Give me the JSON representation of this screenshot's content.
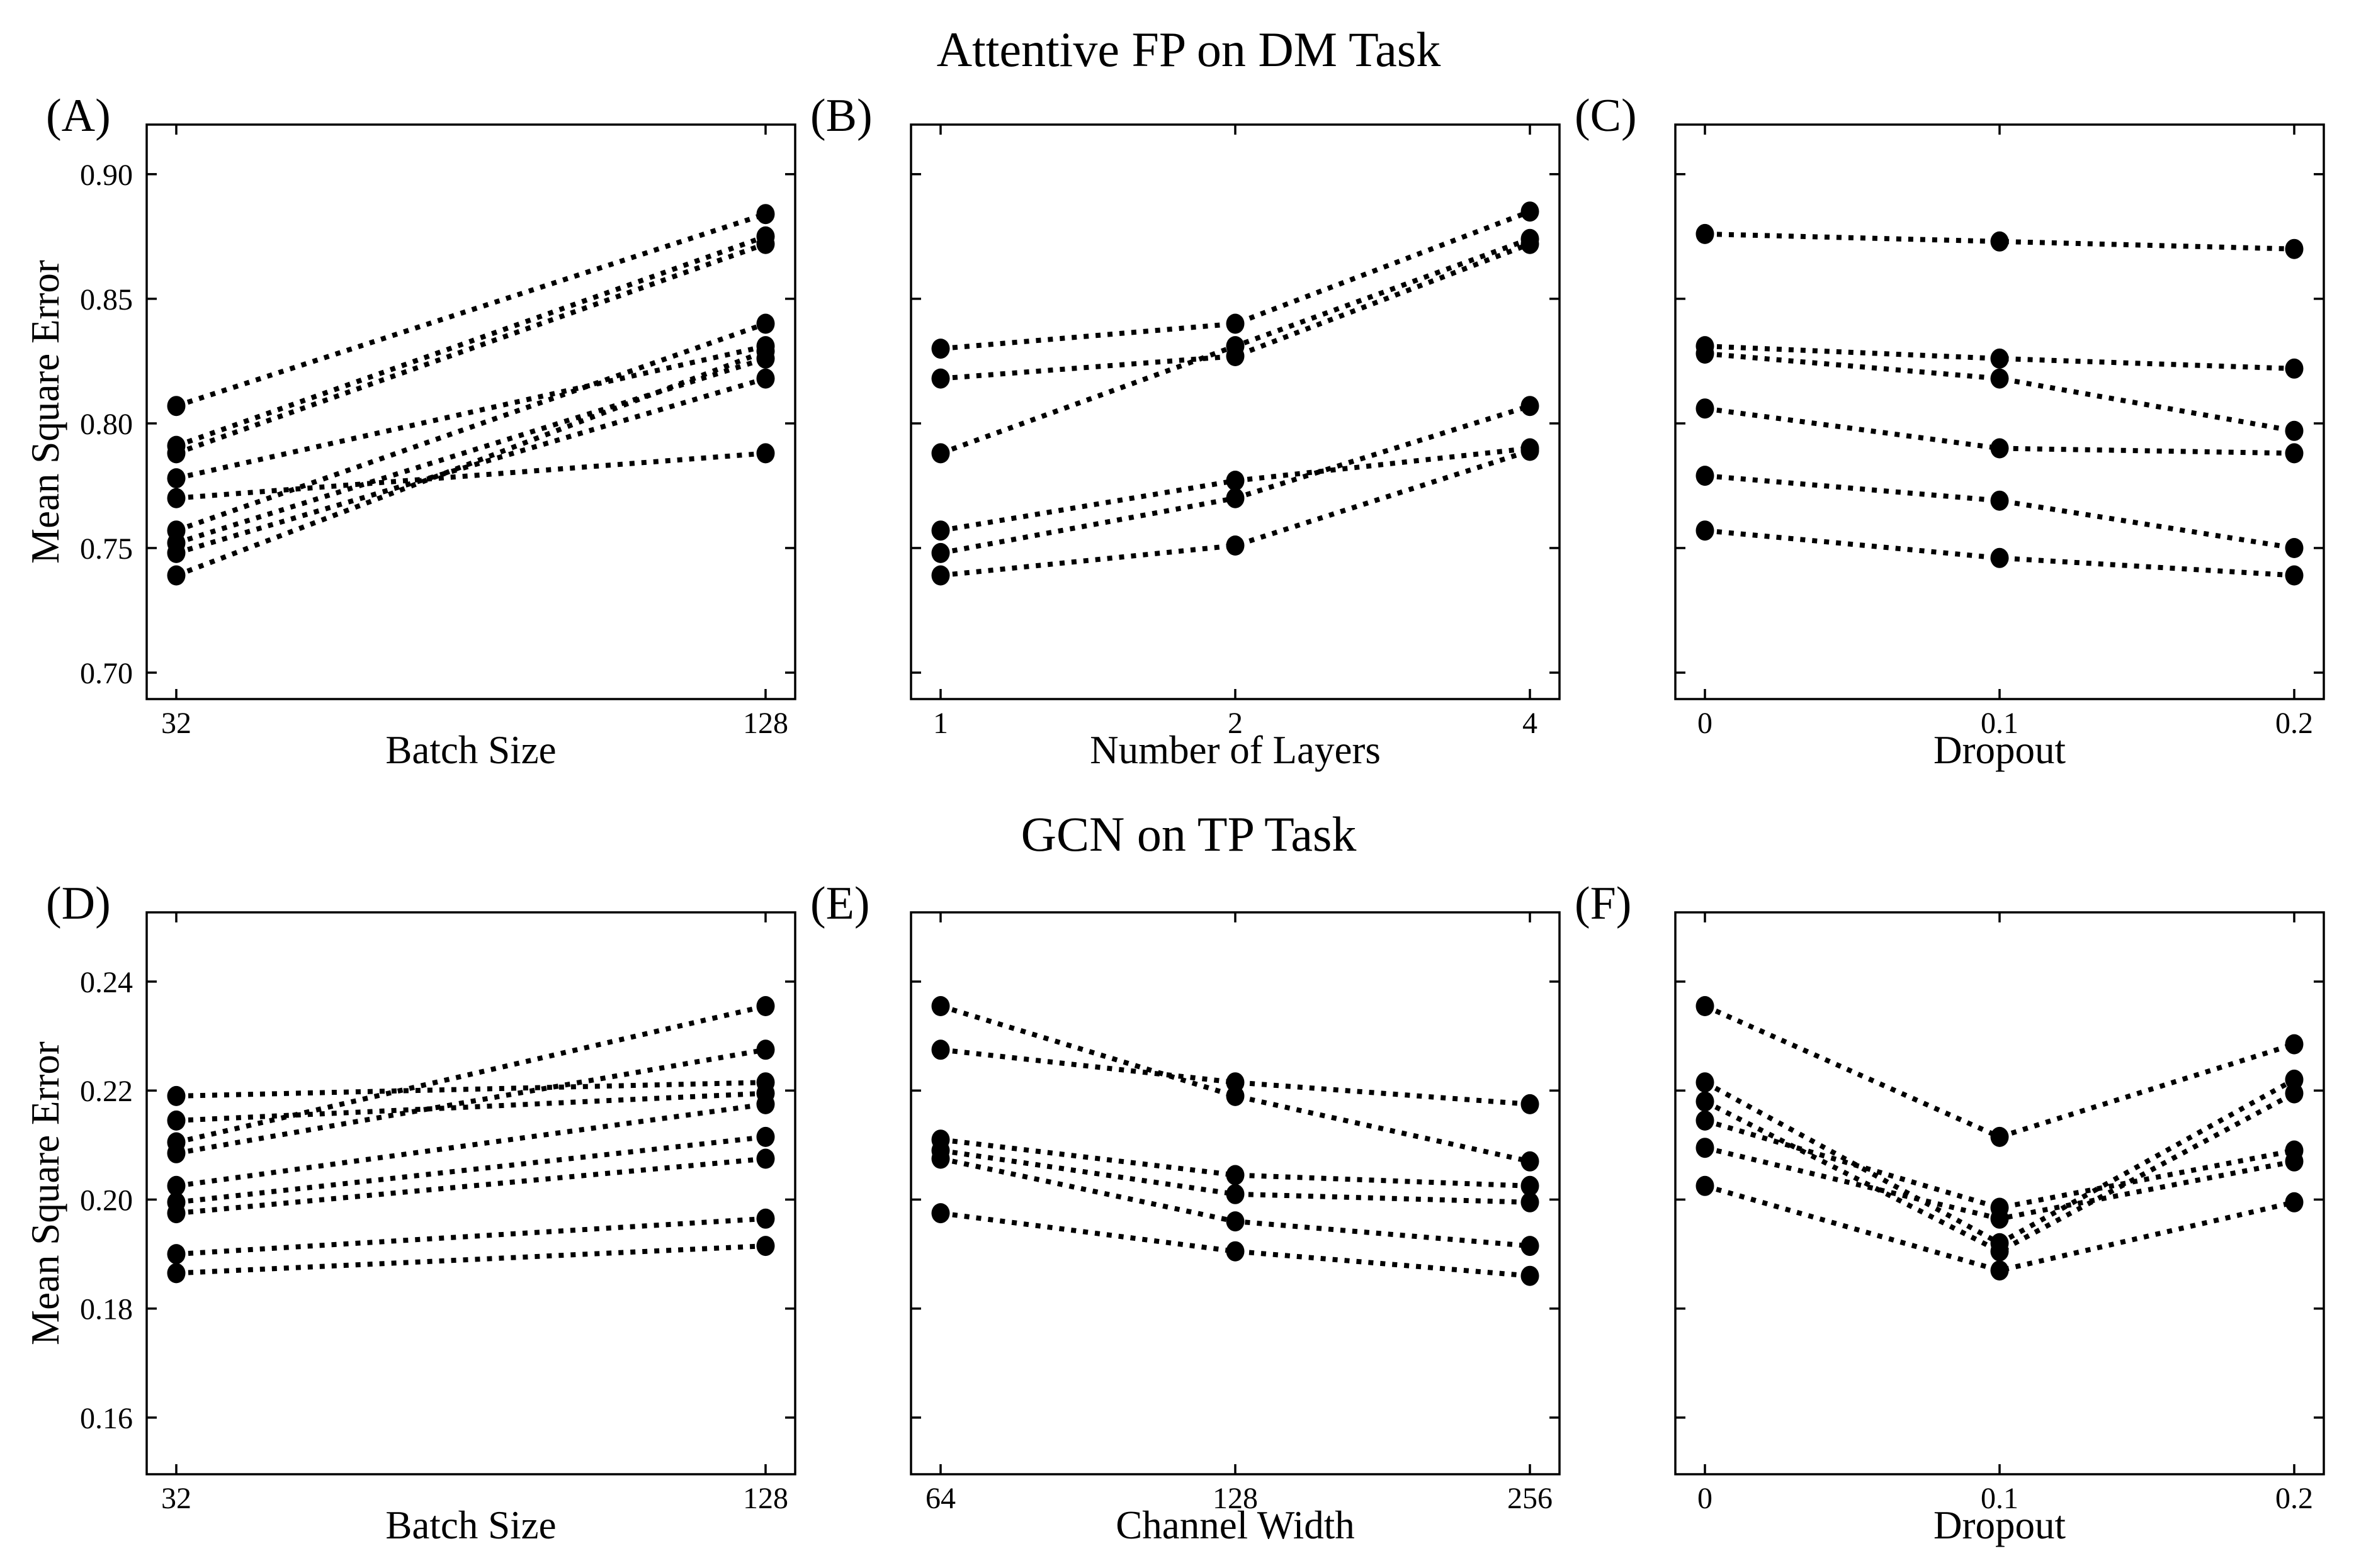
{
  "figure": {
    "row_titles": [
      "Attentive FP on DM Task",
      "GCN on TP Task"
    ],
    "shared_y_axis_label": "Mean Square Error",
    "background_color": "#ffffff",
    "ink_color": "#000000",
    "line_style": "dotted",
    "marker": "filled-circle"
  },
  "chart_data": [
    {
      "id": "A",
      "panel_label": "(A)",
      "type": "line",
      "row": 0,
      "col": 0,
      "x_label": "Batch Size",
      "x_tick_labels": [
        "32",
        "128"
      ],
      "y_label": "Mean Square Error",
      "y_ticks": [
        0.7,
        0.75,
        0.8,
        0.85,
        0.9
      ],
      "y_tick_labels": [
        "0.70",
        "0.75",
        "0.80",
        "0.85",
        "0.90"
      ],
      "show_y_tick_labels": true,
      "ylim": [
        0.6894,
        0.9199
      ],
      "series": [
        {
          "values": [
            0.807,
            0.884
          ]
        },
        {
          "values": [
            0.791,
            0.875
          ]
        },
        {
          "values": [
            0.788,
            0.872
          ]
        },
        {
          "values": [
            0.778,
            0.831
          ]
        },
        {
          "values": [
            0.77,
            0.788
          ]
        },
        {
          "values": [
            0.757,
            0.84
          ]
        },
        {
          "values": [
            0.752,
            0.826
          ]
        },
        {
          "values": [
            0.748,
            0.818
          ]
        },
        {
          "values": [
            0.739,
            0.829
          ]
        }
      ]
    },
    {
      "id": "B",
      "panel_label": "(B)",
      "type": "line",
      "row": 0,
      "col": 1,
      "x_label": "Number of Layers",
      "x_tick_labels": [
        "1",
        "2",
        "4"
      ],
      "y_label": "",
      "y_ticks": [
        0.7,
        0.75,
        0.8,
        0.85,
        0.9
      ],
      "y_tick_labels": [],
      "show_y_tick_labels": false,
      "ylim": [
        0.6894,
        0.9199
      ],
      "series": [
        {
          "values": [
            0.83,
            0.84,
            0.885
          ]
        },
        {
          "values": [
            0.818,
            0.827,
            0.872
          ]
        },
        {
          "values": [
            0.788,
            0.831,
            0.874
          ]
        },
        {
          "values": [
            0.757,
            0.777,
            0.79
          ]
        },
        {
          "values": [
            0.748,
            0.77,
            0.807
          ]
        },
        {
          "values": [
            0.739,
            0.751,
            0.789
          ]
        }
      ]
    },
    {
      "id": "C",
      "panel_label": "(C)",
      "type": "line",
      "row": 0,
      "col": 2,
      "x_label": "Dropout",
      "x_tick_labels": [
        "0",
        "0.1",
        "0.2"
      ],
      "y_label": "",
      "y_ticks": [
        0.7,
        0.75,
        0.8,
        0.85,
        0.9
      ],
      "y_tick_labels": [],
      "show_y_tick_labels": false,
      "ylim": [
        0.6894,
        0.9199
      ],
      "series": [
        {
          "values": [
            0.876,
            0.873,
            0.87
          ]
        },
        {
          "values": [
            0.831,
            0.826,
            0.822
          ]
        },
        {
          "values": [
            0.828,
            0.818,
            0.797
          ]
        },
        {
          "values": [
            0.806,
            0.79,
            0.788
          ]
        },
        {
          "values": [
            0.779,
            0.769,
            0.75
          ]
        },
        {
          "values": [
            0.757,
            0.746,
            0.739
          ]
        }
      ]
    },
    {
      "id": "D",
      "panel_label": "(D)",
      "type": "line",
      "row": 1,
      "col": 0,
      "x_label": "Batch Size",
      "x_tick_labels": [
        "32",
        "128"
      ],
      "y_label": "Mean Square Error",
      "y_ticks": [
        0.16,
        0.18,
        0.2,
        0.22,
        0.24
      ],
      "y_tick_labels": [
        "0.16",
        "0.18",
        "0.20",
        "0.22",
        "0.24"
      ],
      "show_y_tick_labels": true,
      "ylim": [
        0.1496,
        0.2527
      ],
      "series": [
        {
          "values": [
            0.219,
            0.2215
          ]
        },
        {
          "values": [
            0.2145,
            0.2195
          ]
        },
        {
          "values": [
            0.2105,
            0.2355
          ]
        },
        {
          "values": [
            0.2085,
            0.2275
          ]
        },
        {
          "values": [
            0.2025,
            0.2175
          ]
        },
        {
          "values": [
            0.1995,
            0.2115
          ]
        },
        {
          "values": [
            0.1975,
            0.2075
          ]
        },
        {
          "values": [
            0.19,
            0.1965
          ]
        },
        {
          "values": [
            0.1865,
            0.1915
          ]
        }
      ]
    },
    {
      "id": "E",
      "panel_label": "(E)",
      "type": "line",
      "row": 1,
      "col": 1,
      "x_label": "Channel Width",
      "x_tick_labels": [
        "64",
        "128",
        "256"
      ],
      "y_label": "",
      "y_ticks": [
        0.16,
        0.18,
        0.2,
        0.22,
        0.24
      ],
      "y_tick_labels": [],
      "show_y_tick_labels": false,
      "ylim": [
        0.1496,
        0.2527
      ],
      "series": [
        {
          "values": [
            0.2355,
            0.219,
            0.207
          ]
        },
        {
          "values": [
            0.2275,
            0.2215,
            0.2175
          ]
        },
        {
          "values": [
            0.211,
            0.2045,
            0.2025
          ]
        },
        {
          "values": [
            0.209,
            0.201,
            0.1995
          ]
        },
        {
          "values": [
            0.2075,
            0.196,
            0.1915
          ]
        },
        {
          "values": [
            0.1975,
            0.1905,
            0.186
          ]
        }
      ]
    },
    {
      "id": "F",
      "panel_label": "(F)",
      "type": "line",
      "row": 1,
      "col": 2,
      "x_label": "Dropout",
      "x_tick_labels": [
        "0",
        "0.1",
        "0.2"
      ],
      "y_label": "",
      "y_ticks": [
        0.16,
        0.18,
        0.2,
        0.22,
        0.24
      ],
      "y_tick_labels": [],
      "show_y_tick_labels": false,
      "ylim": [
        0.1496,
        0.2527
      ],
      "series": [
        {
          "values": [
            0.2355,
            0.2115,
            0.2285
          ]
        },
        {
          "values": [
            0.2215,
            0.192,
            0.222
          ]
        },
        {
          "values": [
            0.218,
            0.1905,
            0.2195
          ]
        },
        {
          "values": [
            0.2145,
            0.1985,
            0.209
          ]
        },
        {
          "values": [
            0.2095,
            0.1965,
            0.207
          ]
        },
        {
          "values": [
            0.2025,
            0.187,
            0.1995
          ]
        }
      ]
    }
  ]
}
